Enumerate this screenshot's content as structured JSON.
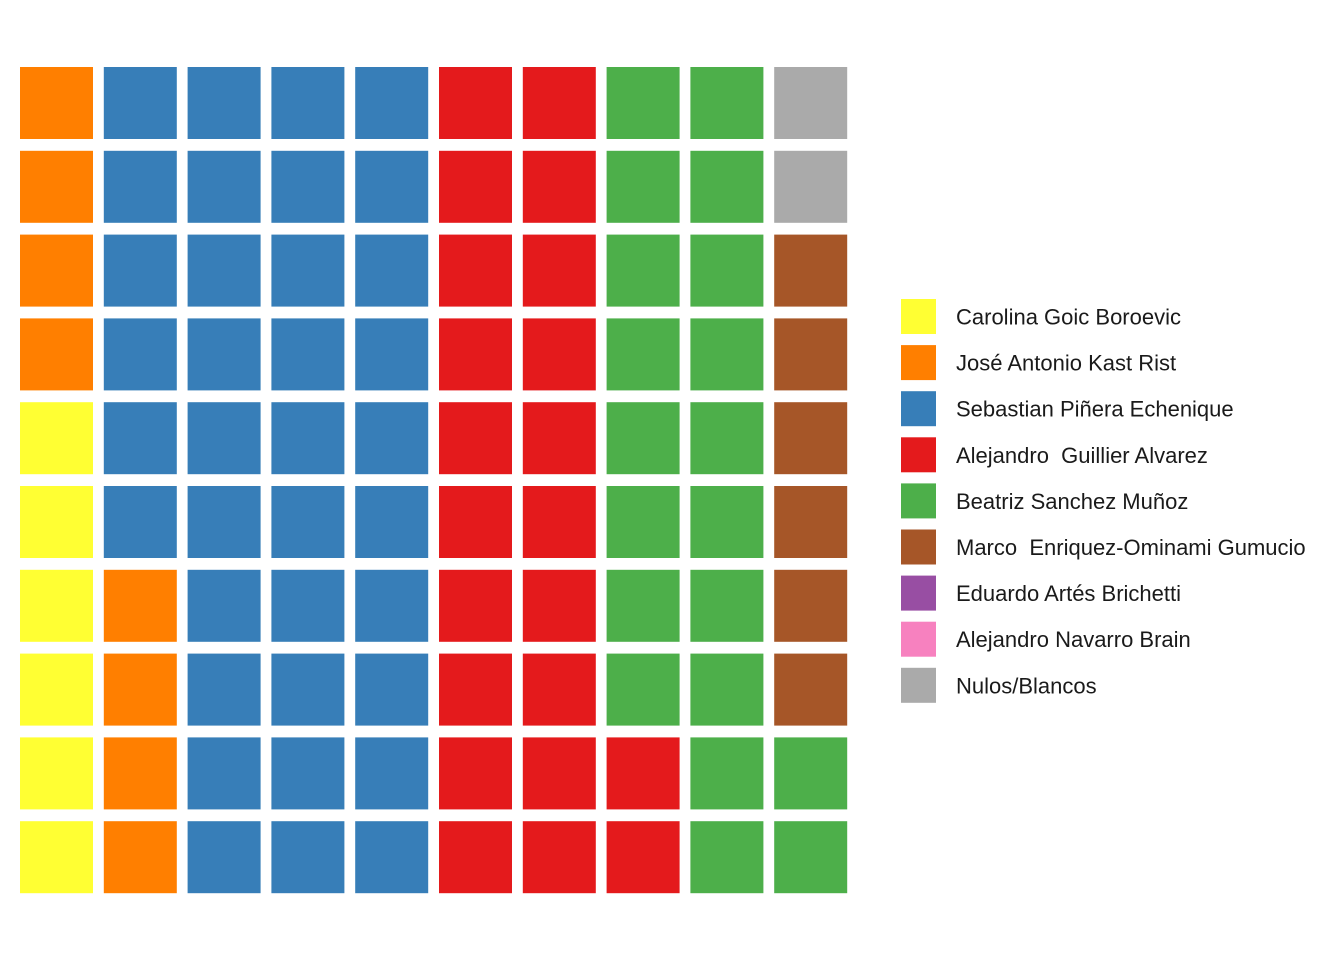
{
  "chart_data": {
    "type": "waffle",
    "grid": {
      "columns": 10,
      "rows": 10,
      "fill_order": "column-wise, bottom-to-top"
    },
    "series": [
      {
        "name": "Carolina Goic Boroevic",
        "value": 6,
        "color": "#FFFF33"
      },
      {
        "name": "José Antonio Kast Rist",
        "value": 8,
        "color": "#FF7F00"
      },
      {
        "name": "Sebastian Piñera Echenique",
        "value": 36,
        "color": "#377EB8"
      },
      {
        "name": "Alejandro  Guillier Alvarez",
        "value": 22,
        "color": "#E41A1C"
      },
      {
        "name": "Beatriz Sanchez Muñoz",
        "value": 20,
        "color": "#4DAF4A"
      },
      {
        "name": "Marco  Enriquez-Ominami Gumucio",
        "value": 6,
        "color": "#A65628"
      },
      {
        "name": "Eduardo Artés Brichetti",
        "value": 0,
        "color": "#984EA3"
      },
      {
        "name": "Alejandro Navarro Brain",
        "value": 0,
        "color": "#F781BF"
      },
      {
        "name": "Nulos/Blancos",
        "value": 2,
        "color": "#AAAAAA"
      }
    ],
    "legend": {
      "position": "right"
    }
  }
}
